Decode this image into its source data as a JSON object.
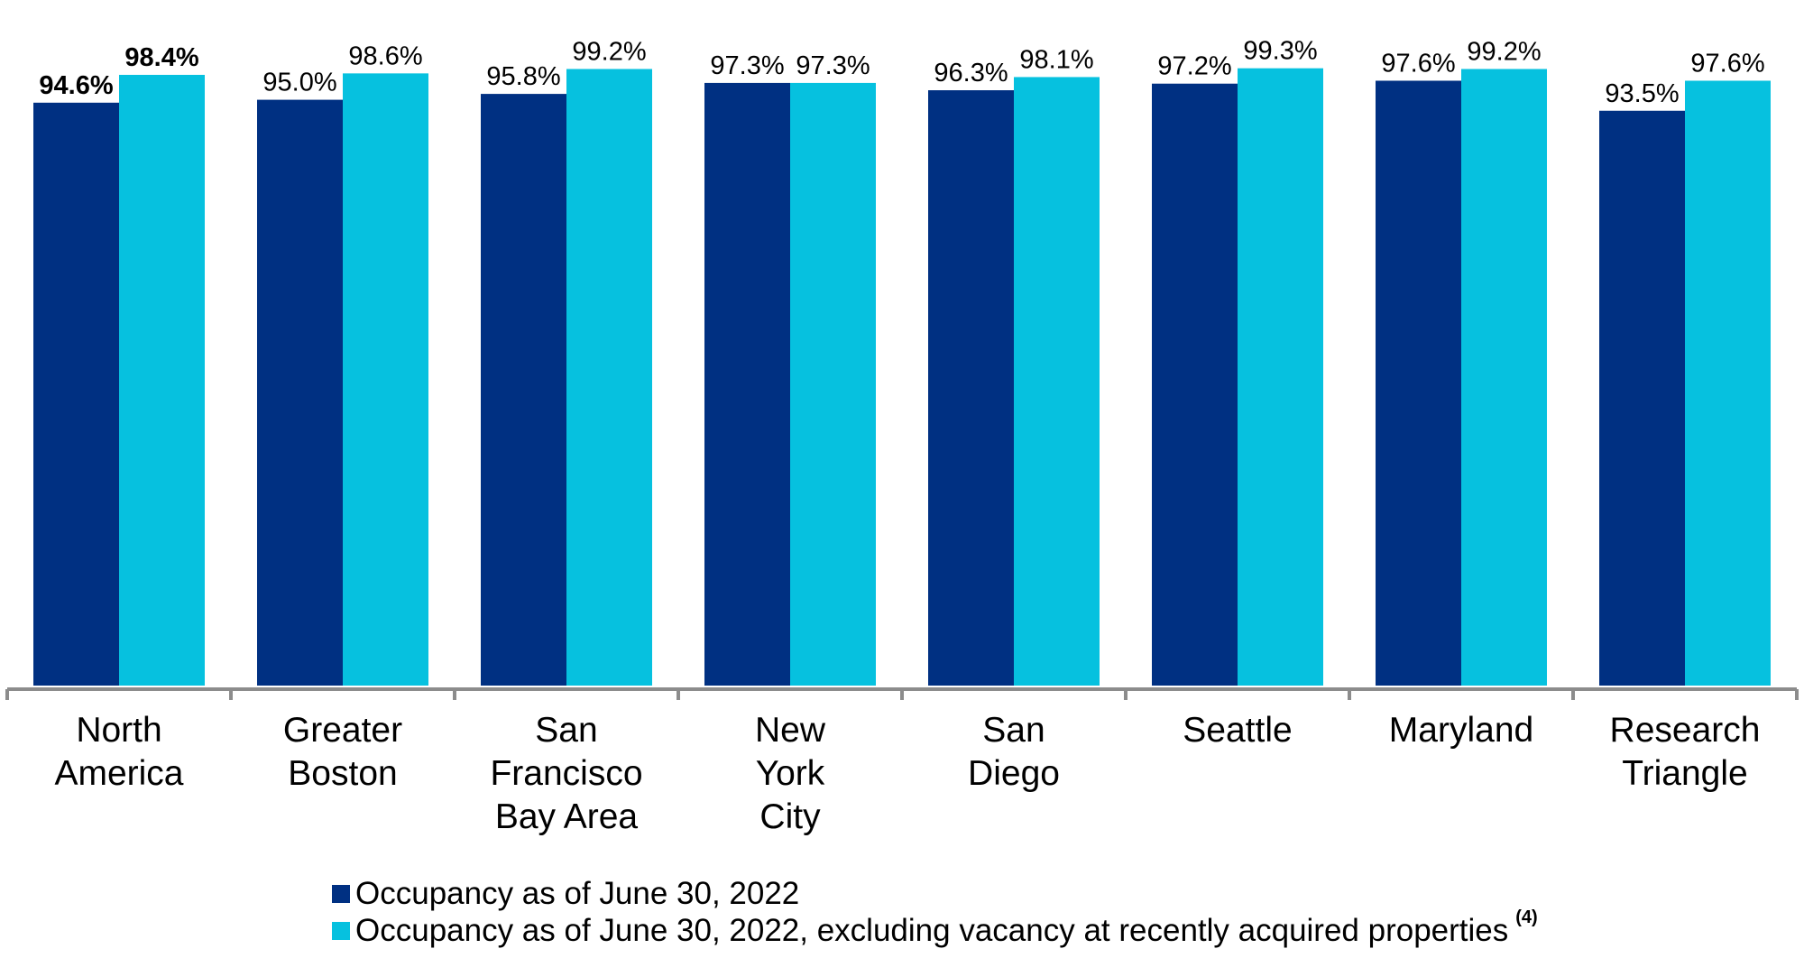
{
  "colors": {
    "series1": "#003082",
    "series2": "#06C1DF",
    "axis": "#8C8C8C"
  },
  "chart_data": {
    "type": "bar",
    "title": "",
    "xlabel": "",
    "ylabel": "",
    "ylim": [
      0,
      100
    ],
    "grid": false,
    "legend_position": "bottom",
    "categories": [
      [
        "North",
        "America"
      ],
      [
        "Greater",
        "Boston"
      ],
      [
        "San",
        "Francisco",
        "Bay Area"
      ],
      [
        "New",
        "York",
        "City"
      ],
      [
        "San",
        "Diego"
      ],
      [
        "Seattle"
      ],
      [
        "Maryland"
      ],
      [
        "Research",
        "Triangle"
      ]
    ],
    "series": [
      {
        "name": "Occupancy as of June 30, 2022",
        "values": [
          94.6,
          95.0,
          95.8,
          97.3,
          96.3,
          97.2,
          97.6,
          93.5
        ],
        "labels": [
          "94.6%",
          "95.0%",
          "95.8%",
          "97.3%",
          "96.3%",
          "97.2%",
          "97.6%",
          "93.5%"
        ]
      },
      {
        "name": "Occupancy as of June 30, 2022, excluding vacancy at recently acquired properties",
        "name_superscript": "(4)",
        "values": [
          98.4,
          98.6,
          99.2,
          97.3,
          98.1,
          99.3,
          99.2,
          97.6
        ],
        "labels": [
          "98.4%",
          "98.6%",
          "99.2%",
          "97.3%",
          "98.1%",
          "99.3%",
          "99.2%",
          "97.6%"
        ]
      }
    ],
    "bold_category_index": 0
  }
}
